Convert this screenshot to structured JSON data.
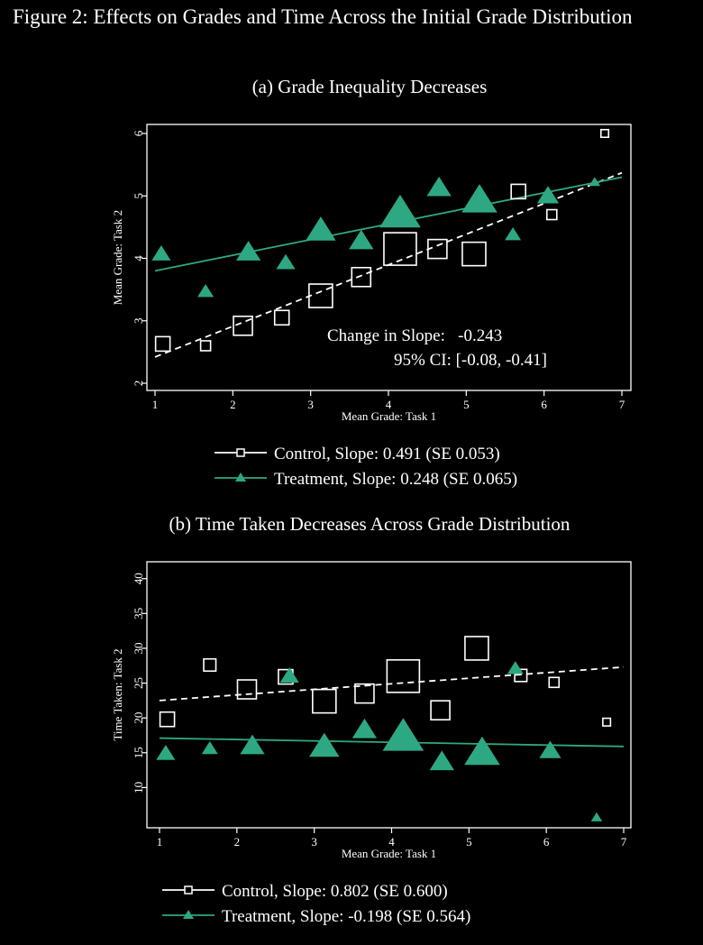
{
  "figure_title": "Figure 2: Effects on Grades and Time Across the Initial Grade Distribution",
  "colors": {
    "treatment": "#2ea883",
    "control": "#ffffff",
    "background": "#000000"
  },
  "chart_data": [
    {
      "type": "scatter",
      "title": "(a) Grade Inequality Decreases",
      "xlabel": "Mean Grade: Task 1",
      "ylabel": "Mean Grade: Task 2",
      "xlim": [
        1,
        7
      ],
      "ylim": [
        2,
        6
      ],
      "xticks": [
        1,
        2,
        3,
        4,
        5,
        6,
        7
      ],
      "yticks": [
        2,
        3,
        4,
        5,
        6
      ],
      "annotation": [
        "Change in Slope:   -0.243",
        "95% CI: [-0.08, -0.41]"
      ],
      "series": [
        {
          "name": "Control, Slope: 0.491 (SE 0.053)",
          "marker": "hollow-square",
          "line": "dashed",
          "points": [
            {
              "x": 1.1,
              "y": 2.63,
              "w": 2
            },
            {
              "x": 1.65,
              "y": 2.6,
              "w": 1
            },
            {
              "x": 2.13,
              "y": 2.92,
              "w": 3
            },
            {
              "x": 2.63,
              "y": 3.05,
              "w": 2
            },
            {
              "x": 3.13,
              "y": 3.4,
              "w": 4
            },
            {
              "x": 3.65,
              "y": 3.7,
              "w": 3
            },
            {
              "x": 4.15,
              "y": 4.15,
              "w": 6
            },
            {
              "x": 4.63,
              "y": 4.15,
              "w": 3
            },
            {
              "x": 5.1,
              "y": 4.07,
              "w": 4
            },
            {
              "x": 5.67,
              "y": 5.07,
              "w": 2
            },
            {
              "x": 6.1,
              "y": 4.7,
              "w": 1
            },
            {
              "x": 6.78,
              "y": 6.0,
              "w": 0.5
            }
          ],
          "fit": [
            [
              1,
              2.42
            ],
            [
              7,
              5.37
            ]
          ]
        },
        {
          "name": "Treatment, Slope: 0.248 (SE 0.065)",
          "marker": "filled-triangle",
          "line": "solid",
          "points": [
            {
              "x": 1.08,
              "y": 4.07,
              "w": 2
            },
            {
              "x": 1.65,
              "y": 3.47,
              "w": 1.5
            },
            {
              "x": 2.2,
              "y": 4.1,
              "w": 3
            },
            {
              "x": 2.68,
              "y": 3.93,
              "w": 2
            },
            {
              "x": 3.13,
              "y": 4.45,
              "w": 4
            },
            {
              "x": 3.65,
              "y": 4.28,
              "w": 3
            },
            {
              "x": 4.15,
              "y": 4.72,
              "w": 6
            },
            {
              "x": 4.65,
              "y": 5.13,
              "w": 3
            },
            {
              "x": 5.17,
              "y": 4.93,
              "w": 5
            },
            {
              "x": 5.6,
              "y": 4.38,
              "w": 1.5
            },
            {
              "x": 6.05,
              "y": 5.0,
              "w": 2.5
            },
            {
              "x": 6.65,
              "y": 5.22,
              "w": 0.6
            }
          ],
          "fit": [
            [
              1,
              3.8
            ],
            [
              7,
              5.3
            ]
          ]
        }
      ]
    },
    {
      "type": "scatter",
      "title": "(b) Time Taken Decreases Across Grade Distribution",
      "xlabel": "Mean Grade: Task 1",
      "ylabel": "Time Taken: Task 2",
      "xlim": [
        1,
        7
      ],
      "ylim": [
        5,
        41
      ],
      "xticks": [
        1,
        2,
        3,
        4,
        5,
        6,
        7
      ],
      "yticks": [
        10,
        15,
        20,
        25,
        30,
        35,
        40
      ],
      "series": [
        {
          "name": "Control, Slope: 0.802 (SE 0.600)",
          "marker": "hollow-square",
          "line": "dashed",
          "points": [
            {
              "x": 1.1,
              "y": 19.8,
              "w": 2
            },
            {
              "x": 1.65,
              "y": 27.6,
              "w": 1.5
            },
            {
              "x": 2.13,
              "y": 24.1,
              "w": 3
            },
            {
              "x": 2.63,
              "y": 25.9,
              "w": 2
            },
            {
              "x": 3.13,
              "y": 22.4,
              "w": 4
            },
            {
              "x": 3.65,
              "y": 23.5,
              "w": 3
            },
            {
              "x": 4.15,
              "y": 26.0,
              "w": 6
            },
            {
              "x": 4.63,
              "y": 21.1,
              "w": 3
            },
            {
              "x": 5.1,
              "y": 30.0,
              "w": 4
            },
            {
              "x": 5.67,
              "y": 26.1,
              "w": 1.5
            },
            {
              "x": 6.1,
              "y": 25.1,
              "w": 1
            },
            {
              "x": 6.78,
              "y": 19.4,
              "w": 0.5
            }
          ],
          "fit": [
            [
              1,
              22.5
            ],
            [
              7,
              27.3
            ]
          ]
        },
        {
          "name": "Treatment, Slope: -0.198 (SE 0.564)",
          "marker": "filled-triangle",
          "line": "solid",
          "points": [
            {
              "x": 1.08,
              "y": 14.9,
              "w": 2
            },
            {
              "x": 1.65,
              "y": 15.6,
              "w": 1.5
            },
            {
              "x": 2.2,
              "y": 16.0,
              "w": 3
            },
            {
              "x": 2.68,
              "y": 26.0,
              "w": 2
            },
            {
              "x": 3.13,
              "y": 15.9,
              "w": 4
            },
            {
              "x": 3.65,
              "y": 18.3,
              "w": 3
            },
            {
              "x": 4.15,
              "y": 17.3,
              "w": 6
            },
            {
              "x": 4.65,
              "y": 13.7,
              "w": 3
            },
            {
              "x": 5.17,
              "y": 15.0,
              "w": 5
            },
            {
              "x": 5.6,
              "y": 27.1,
              "w": 1.5
            },
            {
              "x": 6.05,
              "y": 15.3,
              "w": 2.5
            },
            {
              "x": 6.65,
              "y": 5.7,
              "w": 0.6
            }
          ],
          "fit": [
            [
              1,
              17.1
            ],
            [
              7,
              15.9
            ]
          ]
        }
      ]
    }
  ]
}
